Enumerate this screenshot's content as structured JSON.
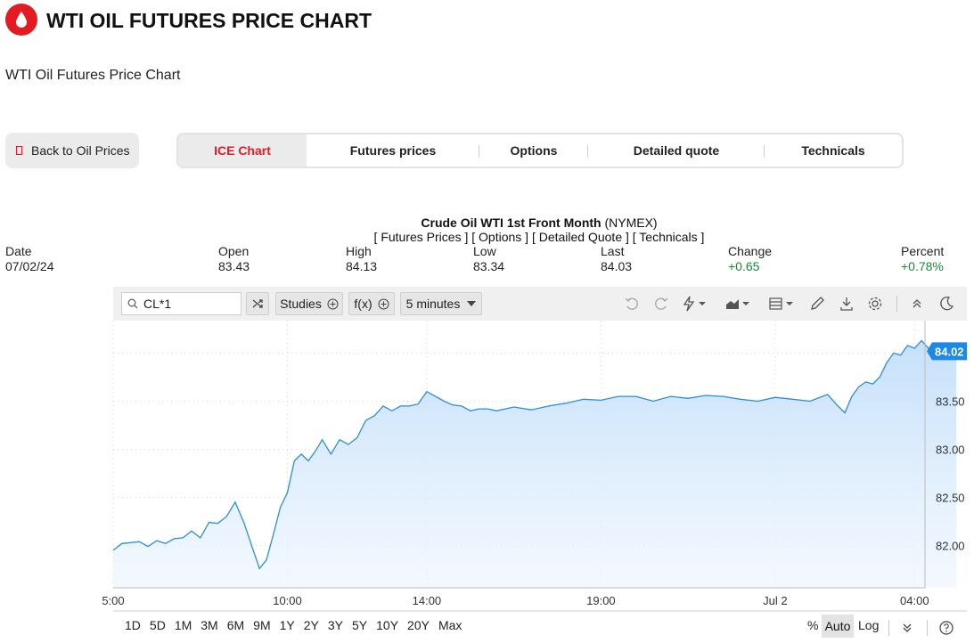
{
  "header": {
    "title": "WTI OIL FUTURES PRICE CHART",
    "subtitle": "WTI Oil Futures Price Chart"
  },
  "nav": {
    "back_label": "Back to Oil Prices",
    "tabs": [
      "ICE Chart",
      "Futures prices",
      "Options",
      "Detailed quote",
      "Technicals"
    ],
    "active_tab": 0
  },
  "quote": {
    "instrument": "Crude Oil WTI 1st Front Month",
    "exchange": "(NYMEX)",
    "links": "[ Futures Prices ] [ Options ] [ Detailed Quote ] [ Technicals ]",
    "stats": [
      {
        "label": "Date",
        "value": "07/02/24"
      },
      {
        "label": "Open",
        "value": "83.43"
      },
      {
        "label": "High",
        "value": "84.13"
      },
      {
        "label": "Low",
        "value": "83.34"
      },
      {
        "label": "Last",
        "value": "84.03"
      },
      {
        "label": "Change",
        "value": "+0.65"
      },
      {
        "label": "Percent",
        "value": "+0.78%"
      }
    ]
  },
  "toolbar": {
    "symbol": "CL*1",
    "studies_label": "Studies",
    "fx_label": "f(x)",
    "interval_label": "5 minutes"
  },
  "footer": {
    "ranges": [
      "1D",
      "5D",
      "1M",
      "3M",
      "6M",
      "9M",
      "1Y",
      "2Y",
      "3Y",
      "5Y",
      "10Y",
      "20Y",
      "Max"
    ],
    "scale_percent": "%",
    "scale_auto": "Auto",
    "scale_log": "Log"
  },
  "colors": {
    "brand": "#e31b23",
    "line": "#2a8fd6",
    "fill_top": "#c6e1f8",
    "positive": "#1c8a3a"
  },
  "chart_data": {
    "type": "area",
    "y_ticks": [
      "82.00",
      "82.50",
      "83.00",
      "83.50"
    ],
    "ylim": [
      81.6,
      84.4
    ],
    "x_ticks": [
      {
        "label": "5:00",
        "t": 0
      },
      {
        "label": "10:00",
        "t": 5
      },
      {
        "label": "14:00",
        "t": 9
      },
      {
        "label": "19:00",
        "t": 14
      },
      {
        "label": "Jul 2",
        "t": 19
      },
      {
        "label": "04:00",
        "t": 23
      }
    ],
    "last_value_label": "84.02",
    "series": [
      {
        "x": [
          0,
          0.25,
          0.5,
          0.75,
          1.0,
          1.25,
          1.5,
          1.75,
          2.0,
          2.25,
          2.5,
          2.75,
          3.0,
          3.25,
          3.5,
          3.75,
          4.0,
          4.2,
          4.4,
          4.6,
          4.8,
          5.0,
          5.2,
          5.4,
          5.6,
          5.8,
          6.0,
          6.25,
          6.5,
          6.75,
          7.0,
          7.25,
          7.5,
          7.75,
          8.0,
          8.25,
          8.5,
          8.75,
          9.0,
          9.25,
          9.5,
          9.75,
          10.0,
          10.25,
          10.5,
          10.75,
          11.0,
          11.5,
          12.0,
          12.5,
          13.0,
          13.5,
          14.0,
          14.5,
          15.0,
          15.5,
          16.0,
          16.5,
          17.0,
          17.5,
          18.0,
          18.5,
          19.0,
          19.5,
          20.0,
          20.5,
          20.8,
          21.0,
          21.2,
          21.4,
          21.6,
          21.8,
          22.0,
          22.2,
          22.4,
          22.6,
          22.8,
          23.0,
          23.2,
          23.4,
          23.6,
          23.8,
          24.0,
          24.2
        ],
        "y": [
          81.95,
          82.02,
          82.03,
          82.04,
          81.99,
          82.05,
          82.02,
          82.07,
          82.08,
          82.15,
          82.08,
          82.24,
          82.23,
          82.3,
          82.45,
          82.24,
          81.97,
          81.76,
          81.85,
          82.12,
          82.4,
          82.55,
          82.88,
          82.95,
          82.88,
          82.98,
          83.1,
          82.95,
          83.1,
          83.05,
          83.12,
          83.3,
          83.35,
          83.45,
          83.4,
          83.45,
          83.45,
          83.47,
          83.6,
          83.55,
          83.5,
          83.46,
          83.45,
          83.4,
          83.42,
          83.42,
          83.4,
          83.44,
          83.41,
          83.45,
          83.48,
          83.52,
          83.51,
          83.55,
          83.55,
          83.5,
          83.55,
          83.53,
          83.56,
          83.55,
          83.52,
          83.5,
          83.54,
          83.52,
          83.5,
          83.57,
          83.45,
          83.38,
          83.55,
          83.65,
          83.7,
          83.68,
          83.75,
          83.9,
          84.0,
          83.98,
          84.08,
          84.05,
          84.13,
          84.05,
          84.0,
          84.05,
          84.01,
          84.02
        ]
      }
    ]
  }
}
